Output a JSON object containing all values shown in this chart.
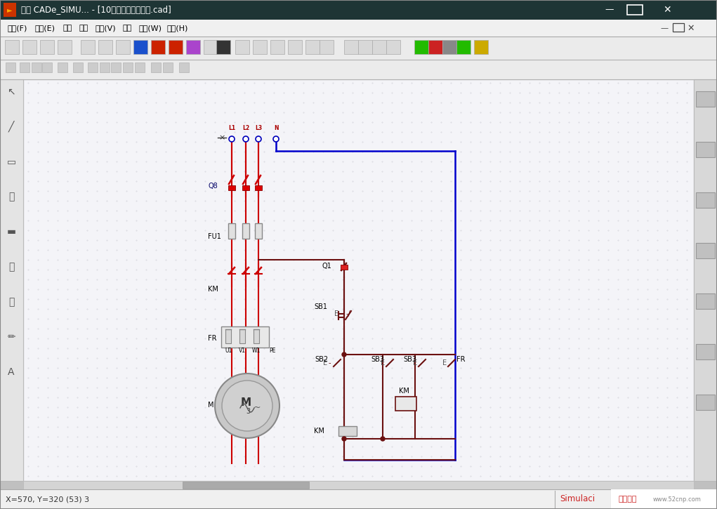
{
  "title_bar": "关于 CADe_SIMU... - [10电机电动运转控制.cad]",
  "title_bg": "#1e3535",
  "menu_items": [
    "文件(F)",
    "编辑(E)",
    "绘图",
    "模拟",
    "查看(V)",
    "显示",
    "窗口(W)",
    "帮助(H)"
  ],
  "status_bar_left": "X=570, Y=320 (53) 3",
  "wire_red": "#cc0000",
  "wire_blue": "#0000cc",
  "wire_dark": "#6b1010",
  "canvas_bg": "#f4f4f8",
  "comp_gray": "#aaaaaa",
  "comp_fill": "#dddddd"
}
